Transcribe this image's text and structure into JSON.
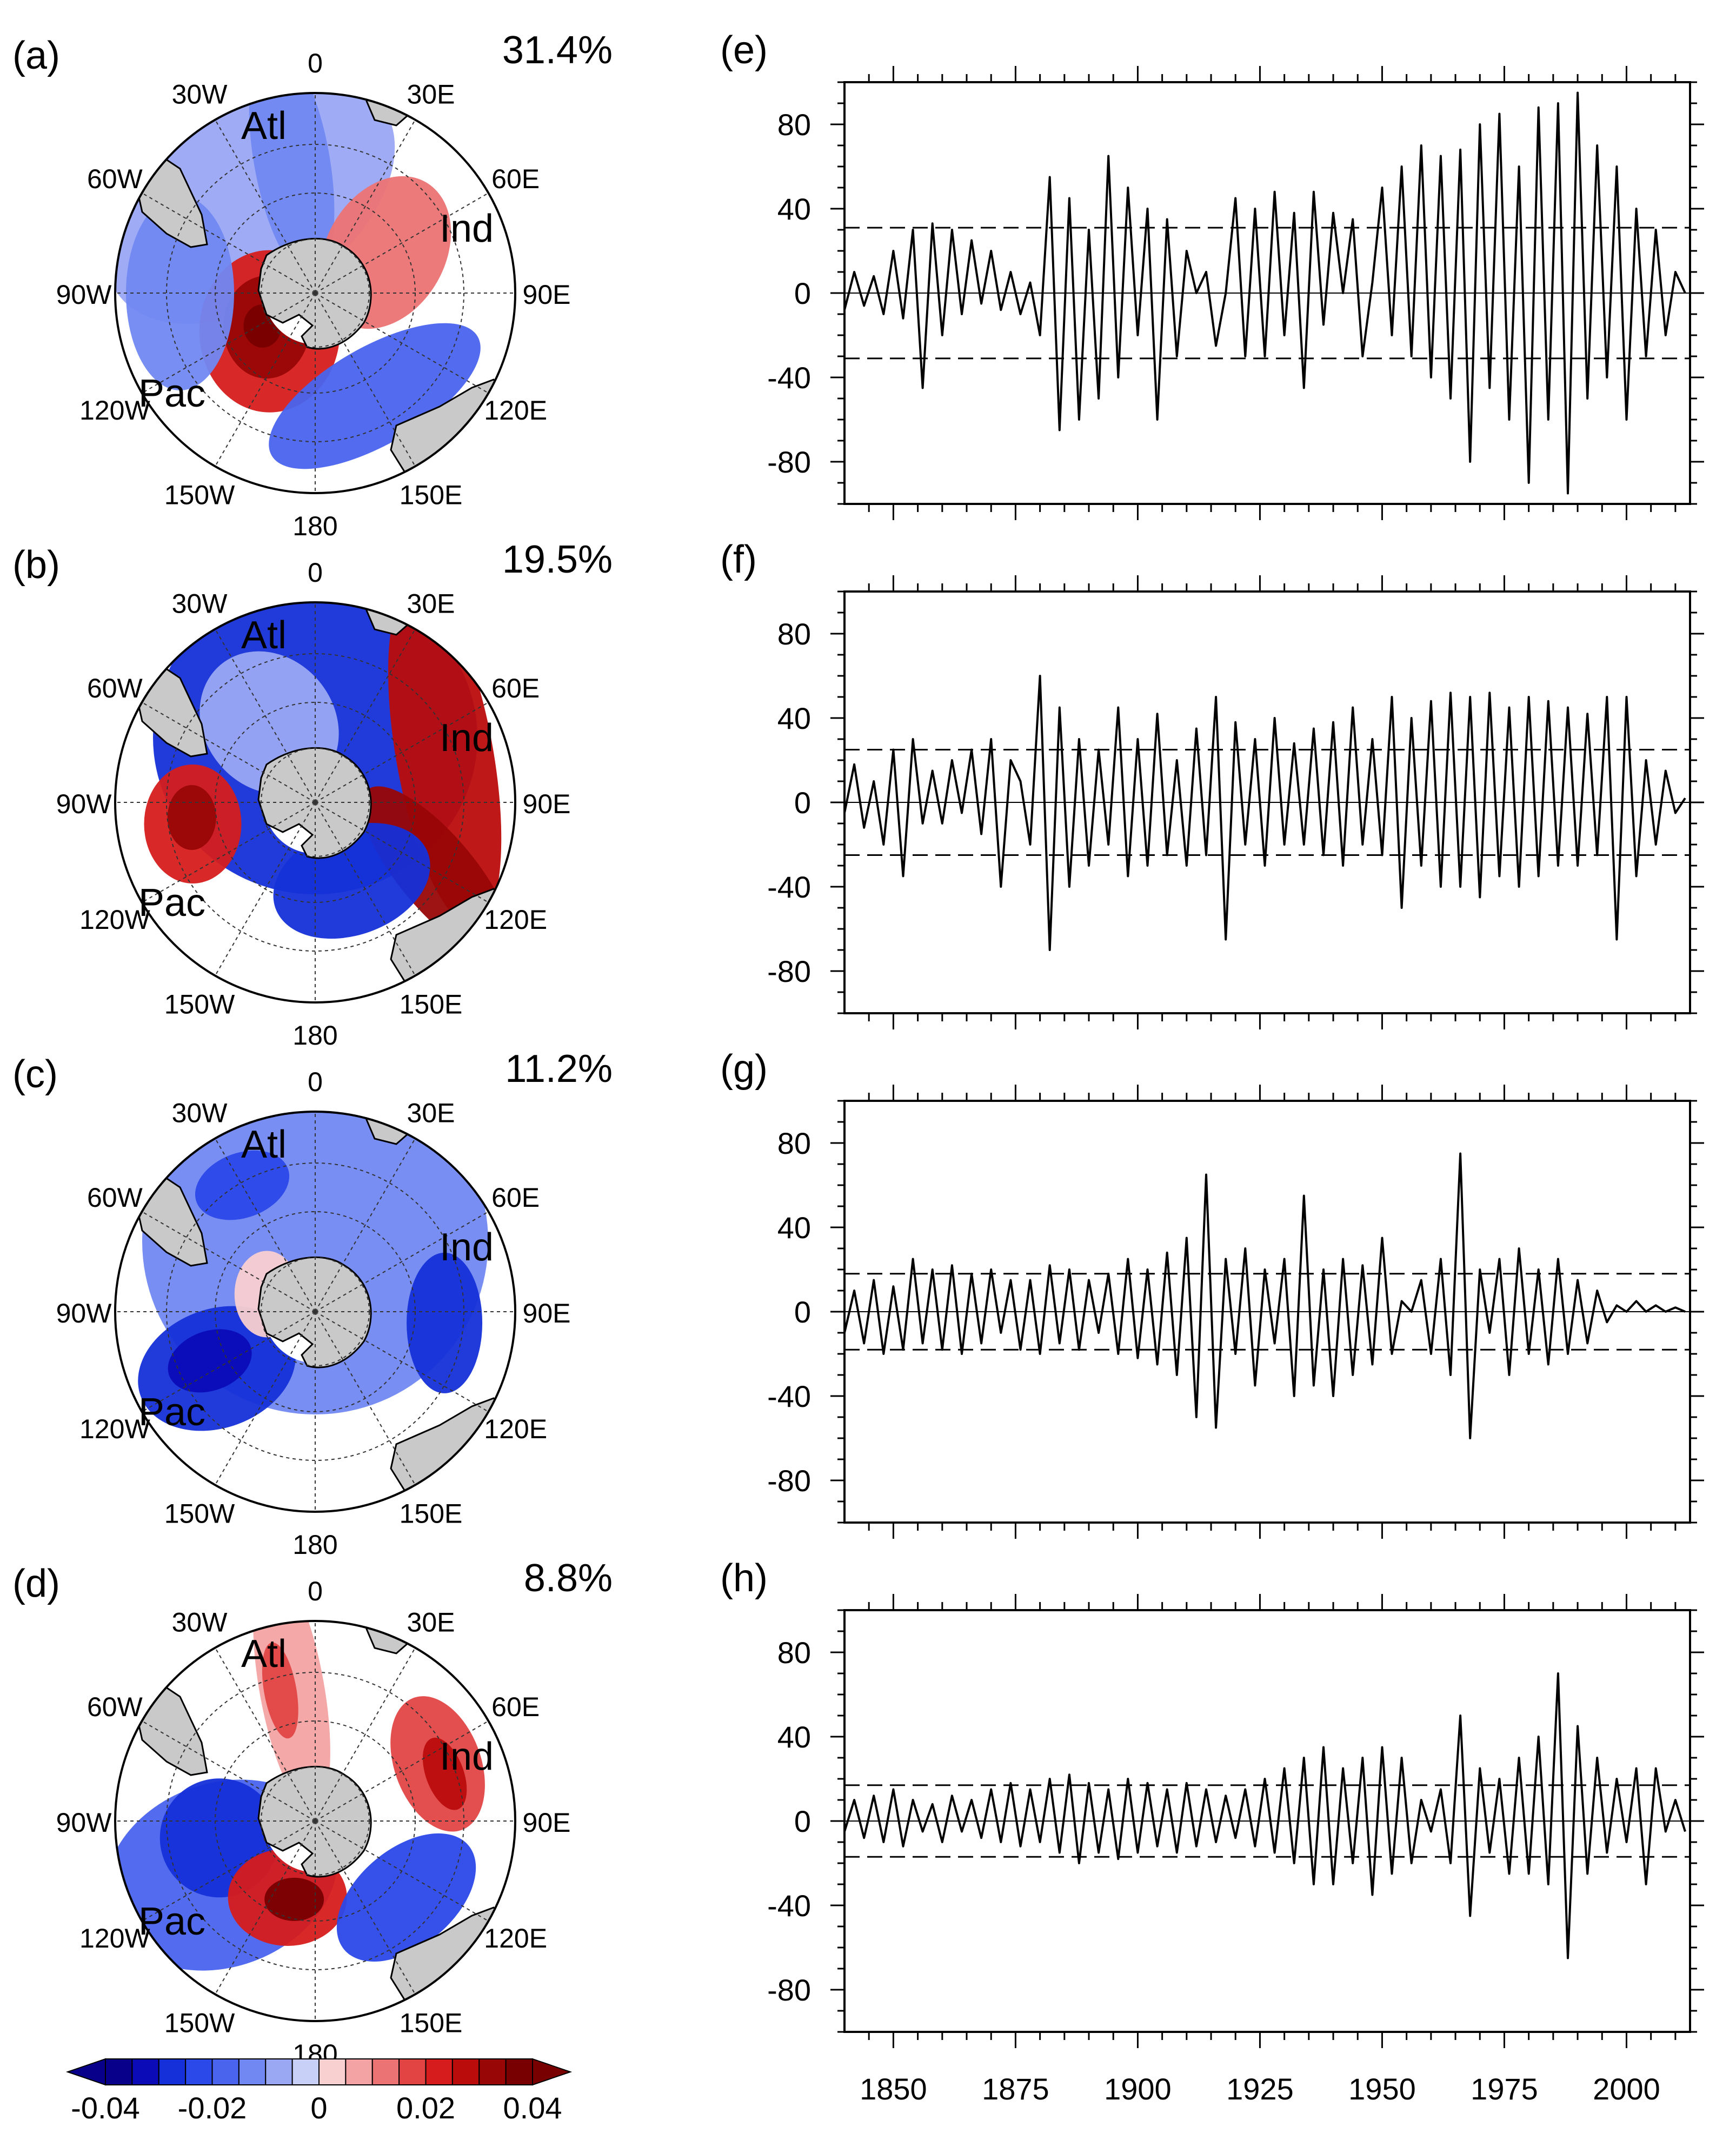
{
  "colorbar": {
    "levels": [
      -0.04,
      -0.035,
      -0.03,
      -0.025,
      -0.02,
      -0.015,
      -0.01,
      -0.005,
      0,
      0.005,
      0.01,
      0.015,
      0.02,
      0.025,
      0.03,
      0.035,
      0.04
    ],
    "colors": [
      "#08008a",
      "#0b0bb8",
      "#1530d8",
      "#2b48e8",
      "#4a64ee",
      "#7188f2",
      "#9aa8f4",
      "#c9d0f8",
      "#f9d0d0",
      "#f3a3a3",
      "#ec7373",
      "#e24444",
      "#d61c1c",
      "#bb0c0c",
      "#990606",
      "#780000"
    ],
    "tick_labels": [
      "-0.04",
      "-0.02",
      "0",
      "0.02",
      "0.04"
    ],
    "tick_values": [
      -0.04,
      -0.02,
      0,
      0.02,
      0.04
    ]
  },
  "maps": [
    {
      "panel": "(a)",
      "variance": "31.4%"
    },
    {
      "panel": "(b)",
      "variance": "19.5%"
    },
    {
      "panel": "(c)",
      "variance": "11.2%"
    },
    {
      "panel": "(d)",
      "variance": "8.8%"
    }
  ],
  "map_labels": {
    "longitudes": [
      "0",
      "30E",
      "60E",
      "90E",
      "120E",
      "150E",
      "180",
      "150W",
      "120W",
      "90W",
      "60W",
      "30W"
    ],
    "basins": [
      "Atl",
      "Ind",
      "Pac"
    ]
  },
  "chart_data": [
    {
      "type": "line",
      "panel": "(e)",
      "x_range": [
        1840,
        2013
      ],
      "ylim": [
        -100,
        100
      ],
      "yticks": [
        -80,
        -40,
        0,
        40,
        80
      ],
      "xticks": [
        1850,
        1875,
        1900,
        1925,
        1950,
        1975,
        2000
      ],
      "threshold": [
        31,
        -31
      ],
      "series": [
        {
          "x": [
            1840,
            1842,
            1844,
            1846,
            1848,
            1850,
            1852,
            1854,
            1856,
            1858,
            1860,
            1862,
            1864,
            1866,
            1868,
            1870,
            1872,
            1874,
            1876,
            1878,
            1880,
            1882,
            1884,
            1886,
            1888,
            1890,
            1892,
            1894,
            1896,
            1898,
            1900,
            1902,
            1904,
            1906,
            1908,
            1910,
            1912,
            1914,
            1916,
            1918,
            1920,
            1922,
            1924,
            1926,
            1928,
            1930,
            1932,
            1934,
            1936,
            1938,
            1940,
            1942,
            1944,
            1946,
            1948,
            1950,
            1952,
            1954,
            1956,
            1958,
            1960,
            1962,
            1964,
            1966,
            1968,
            1970,
            1972,
            1974,
            1976,
            1978,
            1980,
            1982,
            1984,
            1986,
            1988,
            1990,
            1992,
            1994,
            1996,
            1998,
            2000,
            2002,
            2004,
            2006,
            2008,
            2010,
            2012
          ],
          "y": [
            -8,
            10,
            -6,
            8,
            -10,
            20,
            -12,
            30,
            -45,
            33,
            -20,
            30,
            -10,
            25,
            -5,
            20,
            -8,
            10,
            -10,
            5,
            -20,
            55,
            -65,
            45,
            -60,
            30,
            -50,
            65,
            -40,
            50,
            -20,
            40,
            -60,
            35,
            -30,
            20,
            0,
            10,
            -25,
            0,
            45,
            -30,
            40,
            -30,
            48,
            -20,
            38,
            -45,
            48,
            -15,
            38,
            0,
            35,
            -30,
            5,
            50,
            -20,
            60,
            -30,
            70,
            -40,
            65,
            -50,
            68,
            -80,
            80,
            -45,
            85,
            -60,
            60,
            -90,
            88,
            -60,
            90,
            -95,
            95,
            -50,
            70,
            -40,
            60,
            -60,
            40,
            -30,
            30,
            -20,
            10,
            0
          ]
        }
      ]
    },
    {
      "type": "line",
      "panel": "(f)",
      "x_range": [
        1840,
        2013
      ],
      "ylim": [
        -100,
        100
      ],
      "yticks": [
        -80,
        -40,
        0,
        40,
        80
      ],
      "xticks": [
        1850,
        1875,
        1900,
        1925,
        1950,
        1975,
        2000
      ],
      "threshold": [
        25,
        -25
      ],
      "series": [
        {
          "x": [
            1840,
            1842,
            1844,
            1846,
            1848,
            1850,
            1852,
            1854,
            1856,
            1858,
            1860,
            1862,
            1864,
            1866,
            1868,
            1870,
            1872,
            1874,
            1876,
            1878,
            1880,
            1882,
            1884,
            1886,
            1888,
            1890,
            1892,
            1894,
            1896,
            1898,
            1900,
            1902,
            1904,
            1906,
            1908,
            1910,
            1912,
            1914,
            1916,
            1918,
            1920,
            1922,
            1924,
            1926,
            1928,
            1930,
            1932,
            1934,
            1936,
            1938,
            1940,
            1942,
            1944,
            1946,
            1948,
            1950,
            1952,
            1954,
            1956,
            1958,
            1960,
            1962,
            1964,
            1966,
            1968,
            1970,
            1972,
            1974,
            1976,
            1978,
            1980,
            1982,
            1984,
            1986,
            1988,
            1990,
            1992,
            1994,
            1996,
            1998,
            2000,
            2002,
            2004,
            2006,
            2008,
            2010,
            2012
          ],
          "y": [
            -5,
            18,
            -12,
            10,
            -20,
            25,
            -35,
            30,
            -10,
            15,
            -10,
            20,
            -5,
            25,
            -15,
            30,
            -40,
            20,
            10,
            -20,
            60,
            -70,
            45,
            -40,
            30,
            -30,
            25,
            -20,
            45,
            -35,
            30,
            -30,
            42,
            -25,
            20,
            -30,
            35,
            -25,
            50,
            -65,
            38,
            -20,
            30,
            -30,
            40,
            -20,
            28,
            -20,
            35,
            -25,
            38,
            -30,
            45,
            -20,
            30,
            -25,
            50,
            -50,
            40,
            -30,
            48,
            -40,
            52,
            -40,
            50,
            -45,
            52,
            -35,
            45,
            -40,
            50,
            -35,
            48,
            -30,
            45,
            -30,
            42,
            -25,
            50,
            -65,
            50,
            -35,
            20,
            -20,
            15,
            -5,
            2
          ]
        }
      ]
    },
    {
      "type": "line",
      "panel": "(g)",
      "x_range": [
        1840,
        2013
      ],
      "ylim": [
        -100,
        100
      ],
      "yticks": [
        -80,
        -40,
        0,
        40,
        80
      ],
      "xticks": [
        1850,
        1875,
        1900,
        1925,
        1950,
        1975,
        2000
      ],
      "threshold": [
        18,
        -18
      ],
      "series": [
        {
          "x": [
            1840,
            1842,
            1844,
            1846,
            1848,
            1850,
            1852,
            1854,
            1856,
            1858,
            1860,
            1862,
            1864,
            1866,
            1868,
            1870,
            1872,
            1874,
            1876,
            1878,
            1880,
            1882,
            1884,
            1886,
            1888,
            1890,
            1892,
            1894,
            1896,
            1898,
            1900,
            1902,
            1904,
            1906,
            1908,
            1910,
            1912,
            1914,
            1916,
            1918,
            1920,
            1922,
            1924,
            1926,
            1928,
            1930,
            1932,
            1934,
            1936,
            1938,
            1940,
            1942,
            1944,
            1946,
            1948,
            1950,
            1952,
            1954,
            1956,
            1958,
            1960,
            1962,
            1964,
            1966,
            1968,
            1970,
            1972,
            1974,
            1976,
            1978,
            1980,
            1982,
            1984,
            1986,
            1988,
            1990,
            1992,
            1994,
            1996,
            1998,
            2000,
            2002,
            2004,
            2006,
            2008,
            2010,
            2012
          ],
          "y": [
            -10,
            10,
            -15,
            15,
            -20,
            12,
            -18,
            25,
            -15,
            20,
            -18,
            22,
            -20,
            18,
            -15,
            20,
            -10,
            15,
            -18,
            15,
            -20,
            22,
            -15,
            20,
            -18,
            15,
            -10,
            18,
            -20,
            25,
            -22,
            20,
            -25,
            28,
            -30,
            35,
            -50,
            65,
            -55,
            25,
            -20,
            30,
            -35,
            20,
            -15,
            25,
            -40,
            55,
            -35,
            20,
            -40,
            25,
            -30,
            22,
            -25,
            35,
            -20,
            5,
            0,
            15,
            -20,
            25,
            -30,
            75,
            -60,
            20,
            -10,
            25,
            -30,
            30,
            -20,
            20,
            -25,
            25,
            -20,
            15,
            -15,
            10,
            -5,
            3,
            0,
            5,
            0,
            3,
            0,
            2,
            0
          ]
        }
      ]
    },
    {
      "type": "line",
      "panel": "(h)",
      "x_range": [
        1840,
        2013
      ],
      "ylim": [
        -100,
        100
      ],
      "yticks": [
        -80,
        -40,
        0,
        40,
        80
      ],
      "xticks": [
        1850,
        1875,
        1900,
        1925,
        1950,
        1975,
        2000
      ],
      "threshold": [
        17,
        -17
      ],
      "series": [
        {
          "x": [
            1840,
            1842,
            1844,
            1846,
            1848,
            1850,
            1852,
            1854,
            1856,
            1858,
            1860,
            1862,
            1864,
            1866,
            1868,
            1870,
            1872,
            1874,
            1876,
            1878,
            1880,
            1882,
            1884,
            1886,
            1888,
            1890,
            1892,
            1894,
            1896,
            1898,
            1900,
            1902,
            1904,
            1906,
            1908,
            1910,
            1912,
            1914,
            1916,
            1918,
            1920,
            1922,
            1924,
            1926,
            1928,
            1930,
            1932,
            1934,
            1936,
            1938,
            1940,
            1942,
            1944,
            1946,
            1948,
            1950,
            1952,
            1954,
            1956,
            1958,
            1960,
            1962,
            1964,
            1966,
            1968,
            1970,
            1972,
            1974,
            1976,
            1978,
            1980,
            1982,
            1984,
            1986,
            1988,
            1990,
            1992,
            1994,
            1996,
            1998,
            2000,
            2002,
            2004,
            2006,
            2008,
            2010,
            2012
          ],
          "y": [
            -5,
            10,
            -8,
            12,
            -10,
            15,
            -12,
            10,
            -5,
            8,
            -10,
            12,
            -5,
            10,
            -8,
            15,
            -10,
            18,
            -12,
            15,
            -10,
            20,
            -15,
            22,
            -20,
            18,
            -15,
            15,
            -18,
            20,
            -15,
            18,
            -12,
            15,
            -15,
            18,
            -12,
            15,
            -10,
            12,
            -8,
            15,
            -12,
            20,
            -15,
            25,
            -20,
            30,
            -30,
            35,
            -30,
            25,
            -20,
            30,
            -35,
            35,
            -25,
            30,
            -20,
            10,
            -5,
            15,
            -20,
            50,
            -45,
            25,
            -15,
            20,
            -25,
            30,
            -25,
            40,
            -30,
            70,
            -65,
            45,
            -25,
            30,
            -15,
            20,
            -10,
            25,
            -30,
            25,
            -5,
            10,
            -5
          ]
        }
      ]
    }
  ]
}
